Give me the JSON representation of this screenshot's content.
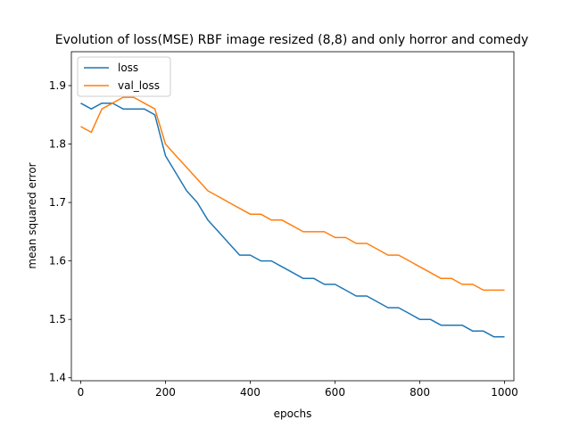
{
  "chart_data": {
    "type": "line",
    "title": "Evolution of loss(MSE) RBF image resized (8,8) and only horror and comedy",
    "xlabel": "epochs",
    "ylabel": "mean squared error",
    "xlim": [
      -22,
      1022
    ],
    "ylim": [
      1.395,
      1.958
    ],
    "xticks": [
      0,
      200,
      400,
      600,
      800,
      1000
    ],
    "yticks": [
      1.4,
      1.5,
      1.6,
      1.7,
      1.8,
      1.9
    ],
    "grid": false,
    "legend": "top-left",
    "series": [
      {
        "name": "loss",
        "color": "#1f77b4",
        "x": [
          0,
          25,
          50,
          75,
          100,
          125,
          150,
          175,
          200,
          225,
          250,
          275,
          300,
          325,
          350,
          375,
          400,
          425,
          450,
          475,
          500,
          525,
          550,
          575,
          600,
          625,
          650,
          675,
          700,
          725,
          750,
          775,
          800,
          825,
          850,
          875,
          900,
          925,
          950,
          975,
          1000
        ],
        "y": [
          1.87,
          1.86,
          1.87,
          1.87,
          1.86,
          1.86,
          1.86,
          1.85,
          1.78,
          1.75,
          1.72,
          1.7,
          1.67,
          1.65,
          1.63,
          1.61,
          1.61,
          1.6,
          1.6,
          1.59,
          1.58,
          1.57,
          1.57,
          1.56,
          1.56,
          1.55,
          1.54,
          1.54,
          1.53,
          1.52,
          1.52,
          1.51,
          1.5,
          1.5,
          1.49,
          1.49,
          1.49,
          1.48,
          1.48,
          1.47,
          1.47
        ]
      },
      {
        "name": "val_loss",
        "color": "#ff7f0e",
        "x": [
          0,
          25,
          50,
          75,
          100,
          125,
          150,
          175,
          200,
          225,
          250,
          275,
          300,
          325,
          350,
          375,
          400,
          425,
          450,
          475,
          500,
          525,
          550,
          575,
          600,
          625,
          650,
          675,
          700,
          725,
          750,
          775,
          800,
          825,
          850,
          875,
          900,
          925,
          950,
          975,
          1000
        ],
        "y": [
          1.83,
          1.82,
          1.86,
          1.87,
          1.88,
          1.88,
          1.87,
          1.86,
          1.8,
          1.78,
          1.76,
          1.74,
          1.72,
          1.71,
          1.7,
          1.69,
          1.68,
          1.68,
          1.67,
          1.67,
          1.66,
          1.65,
          1.65,
          1.65,
          1.64,
          1.64,
          1.63,
          1.63,
          1.62,
          1.61,
          1.61,
          1.6,
          1.59,
          1.58,
          1.57,
          1.57,
          1.56,
          1.56,
          1.55,
          1.55,
          1.55
        ]
      }
    ]
  }
}
